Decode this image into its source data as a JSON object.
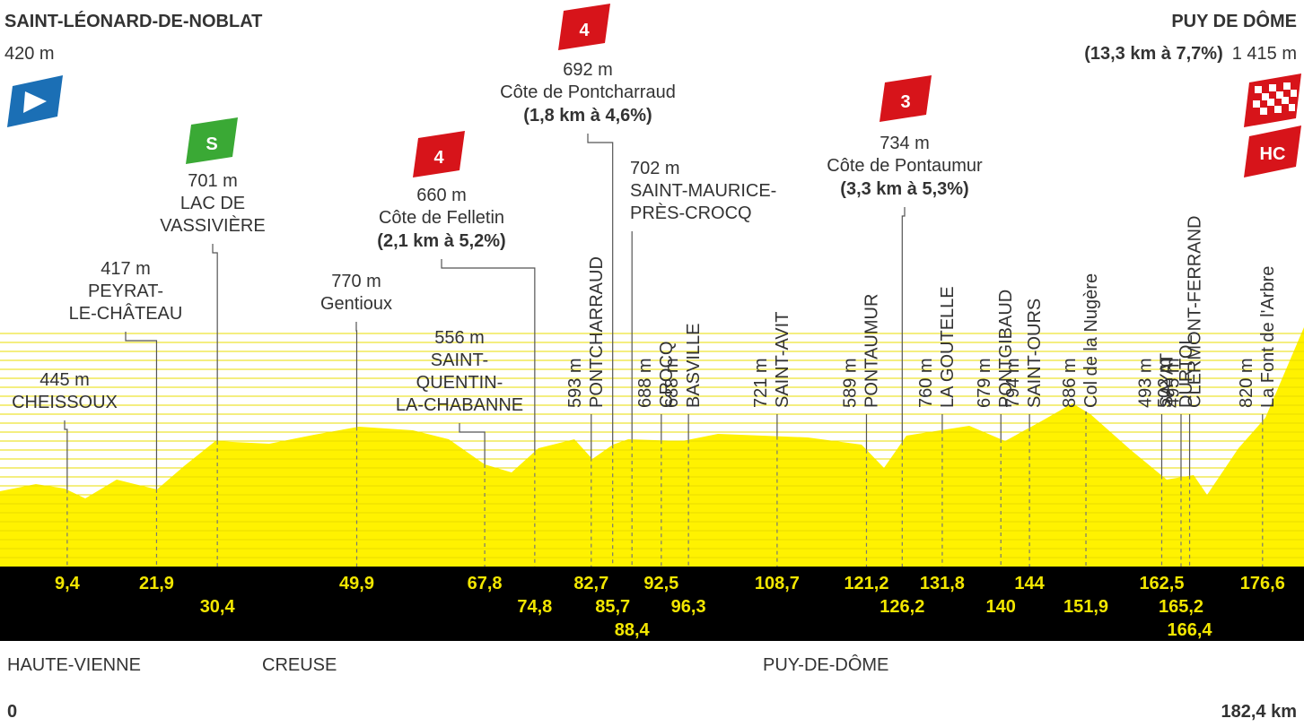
{
  "start": {
    "name": "SAINT-LÉONARD-DE-NOBLAT",
    "altitude": "420 m"
  },
  "finish": {
    "name": "PUY DE DÔME",
    "climb": "(13,3 km à 7,7%)",
    "altitude": "1 415 m",
    "category": "HC"
  },
  "waypoints": [
    {
      "km": "9,4",
      "altitude": "445 m",
      "name": [
        "CHEISSOUX"
      ]
    },
    {
      "km": "21,9",
      "altitude": "417 m",
      "name": [
        "PEYRAT-",
        "LE-CHÂTEAU"
      ]
    },
    {
      "km": "30,4",
      "altitude": "701 m",
      "name": [
        "LAC DE",
        "VASSIVIÈRE"
      ],
      "sprint": "S"
    },
    {
      "km": "49,9",
      "altitude": "770 m",
      "name": [
        "Gentioux"
      ]
    },
    {
      "km": "67,8",
      "altitude": "556 m",
      "name": [
        "SAINT-",
        "QUENTIN-",
        "LA-CHABANNE"
      ]
    },
    {
      "km": "74,8",
      "altitude": "660 m",
      "name": [
        "Côte de Felletin"
      ],
      "climb": "(2,1 km à 5,2%)",
      "category": "4"
    },
    {
      "km": "82,7",
      "altitude": "593 m",
      "name": [
        "PONTCHARRAUD"
      ]
    },
    {
      "km": "85,7",
      "altitude": "692 m",
      "name": [
        "Côte de Pontcharraud"
      ],
      "climb": "(1,8 km à 4,6%)",
      "category": "4"
    },
    {
      "km": "88,4",
      "altitude": "702 m",
      "name": [
        "SAINT-MAURICE-",
        "PRÈS-CROCQ"
      ]
    },
    {
      "km": "92,5",
      "altitude": "688 m",
      "name": [
        "CROCQ"
      ]
    },
    {
      "km": "96,3",
      "altitude": "688 m",
      "name": [
        "BASVILLE"
      ]
    },
    {
      "km": "108,7",
      "altitude": "721 m",
      "name": [
        "SAINT-AVIT"
      ]
    },
    {
      "km": "121,2",
      "altitude": "589 m",
      "name": [
        "PONTAUMUR"
      ]
    },
    {
      "km": "126,2",
      "altitude": "734 m",
      "name": [
        "Côte de Pontaumur"
      ],
      "climb": "(3,3 km à 5,3%)",
      "category": "3"
    },
    {
      "km": "131,8",
      "altitude": "760 m",
      "name": [
        "LA GOUTELLE"
      ]
    },
    {
      "km": "140",
      "altitude": "679 m",
      "name": [
        "PONTGIBAUD"
      ]
    },
    {
      "km": "144",
      "altitude": "794 m",
      "name": [
        "SAINT-OURS"
      ]
    },
    {
      "km": "151,9",
      "altitude": "886 m",
      "name": [
        "Col de la Nugère"
      ]
    },
    {
      "km": "162,5",
      "altitude": "493 m",
      "name": [
        "SAYAT"
      ]
    },
    {
      "km": "165,2",
      "altitude": "502 m",
      "name": [
        "DURTOL"
      ]
    },
    {
      "km": "166,4",
      "altitude": "495 m",
      "name": [
        "CLERMONT-FERRAND"
      ]
    },
    {
      "km": "176,6",
      "altitude": "820 m",
      "name": [
        "La Font de l'Arbre"
      ]
    }
  ],
  "departments": [
    "HAUTE-VIENNE",
    "CREUSE",
    "PUY-DE-DÔME"
  ],
  "distance": {
    "start": "0",
    "end": "182,4 km"
  }
}
